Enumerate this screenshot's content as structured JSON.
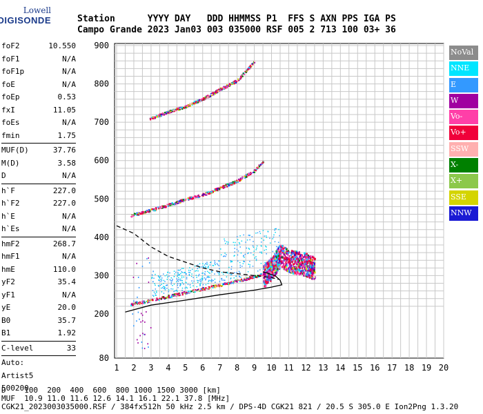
{
  "logo": {
    "line1": "Lowell",
    "line2": "DIGISONDE"
  },
  "header": {
    "line1": "Station      YYYY DAY   DDD HHMMSS P1  FFS S AXN PPS IGA PS",
    "line2": "Campo Grande 2023 Jan03 003 035000 RSF 005 2 713 100 03+ 36"
  },
  "params": [
    {
      "name": "foF2",
      "value": "10.550"
    },
    {
      "name": "foF1",
      "value": "N/A"
    },
    {
      "name": "foF1p",
      "value": "N/A"
    },
    {
      "name": "foE",
      "value": "N/A"
    },
    {
      "name": "foEp",
      "value": "0.53"
    },
    {
      "name": "fxI",
      "value": "11.05"
    },
    {
      "name": "foEs",
      "value": "N/A"
    },
    {
      "name": "fmin",
      "value": "1.75"
    },
    {
      "sep": true
    },
    {
      "name": "MUF(D)",
      "value": "37.76"
    },
    {
      "name": "M(D)",
      "value": "3.58"
    },
    {
      "name": "D",
      "value": "N/A"
    },
    {
      "sep": true
    },
    {
      "name": "h`F",
      "value": "227.0"
    },
    {
      "name": "h`F2",
      "value": "227.0"
    },
    {
      "name": "h`E",
      "value": "N/A"
    },
    {
      "name": "h`Es",
      "value": "N/A"
    },
    {
      "sep": true
    },
    {
      "name": "hmF2",
      "value": "268.7"
    },
    {
      "name": "hmF1",
      "value": "N/A"
    },
    {
      "name": "hmE",
      "value": "110.0"
    },
    {
      "name": "yF2",
      "value": "35.4"
    },
    {
      "name": "yF1",
      "value": "N/A"
    },
    {
      "name": "yE",
      "value": "20.0"
    },
    {
      "name": "B0",
      "value": "35.7"
    },
    {
      "name": "B1",
      "value": "1.92"
    },
    {
      "sep": true
    },
    {
      "name": "C-level",
      "value": "33"
    },
    {
      "sep": true
    },
    {
      "name": "Auto:",
      "value": ""
    },
    {
      "name": "Artist5",
      "value": ""
    },
    {
      "name": "500200",
      "value": ""
    }
  ],
  "legend": [
    {
      "label": "NoVal",
      "color": "#8c8c8c"
    },
    {
      "label": "NNE",
      "color": "#00e5ff"
    },
    {
      "label": "E",
      "color": "#3399ff"
    },
    {
      "label": "W",
      "color": "#a000a0"
    },
    {
      "label": "Vo-",
      "color": "#ff3fa8"
    },
    {
      "label": "Vo+",
      "color": "#f0003a"
    },
    {
      "label": "SSW",
      "color": "#ffb0b0"
    },
    {
      "label": "X-",
      "color": "#008000"
    },
    {
      "label": "X+",
      "color": "#8cc84b"
    },
    {
      "label": "SSE",
      "color": "#d4d400"
    },
    {
      "label": "NNW",
      "color": "#1a1ad4"
    }
  ],
  "chart_data": {
    "type": "scatter",
    "x_ticks": [
      "1",
      "2",
      "3",
      "4",
      "5",
      "6",
      "7",
      "8",
      "9",
      "10",
      "11",
      "12",
      "13",
      "14",
      "15",
      "16",
      "17",
      "18",
      "19",
      "20"
    ],
    "y_ticks": [
      "80",
      "200",
      "300",
      "400",
      "500",
      "600",
      "700",
      "800",
      "900"
    ],
    "xlim": [
      1,
      20
    ],
    "ylim": [
      80,
      900
    ],
    "grid": true,
    "traces": [
      {
        "name": "O-trace F2",
        "x": [
          1.8,
          2.5,
          3.5,
          4.5,
          5.5,
          6.5,
          7.5,
          8.5,
          9.5,
          10.0,
          10.5
        ],
        "y": [
          227,
          232,
          242,
          252,
          262,
          272,
          282,
          293,
          305,
          315,
          330
        ]
      },
      {
        "name": "2F echo",
        "x": [
          1.8,
          3.0,
          4.0,
          5.0,
          6.0,
          7.0,
          8.0,
          9.0,
          9.5
        ],
        "y": [
          458,
          472,
          485,
          500,
          512,
          530,
          548,
          575,
          600
        ]
      },
      {
        "name": "3F echo",
        "x": [
          2.9,
          4.0,
          5.0,
          6.0,
          7.0,
          8.0,
          8.5,
          9.0
        ],
        "y": [
          710,
          728,
          742,
          762,
          787,
          810,
          835,
          860
        ]
      },
      {
        "name": "Spread F",
        "x": [
          9.5,
          10.0,
          10.5,
          11.0,
          11.5,
          12.0,
          12.5
        ],
        "y": [
          300,
          320,
          355,
          340,
          335,
          330,
          320
        ]
      }
    ],
    "profile_curves": [
      {
        "name": "profile-solid",
        "x": [
          1.5,
          3.0,
          5.0,
          7.0,
          9.0,
          10.0,
          10.6,
          10.5,
          10.2,
          9.5
        ],
        "y": [
          205,
          223,
          236,
          250,
          262,
          270,
          276,
          288,
          300,
          310
        ]
      },
      {
        "name": "profile-dashed",
        "x": [
          1.0,
          2.0,
          3.0,
          4.0,
          5.0,
          6.0,
          7.0,
          8.0,
          9.0,
          10.0,
          10.4
        ],
        "y": [
          430,
          410,
          375,
          350,
          335,
          320,
          310,
          305,
          300,
          295,
          290
        ]
      }
    ]
  },
  "footer": {
    "line1": "D    100  200  400  600  800 1000 1500 3000 [km]",
    "line2": "MUF  10.9 11.0 11.6 12.6 14.1 16.1 22.1 37.8 [MHz]",
    "line3": "CGK21_2023003035000.RSF / 384fx512h 50 kHz 2.5 km / DPS-4D CGK21 821 / 20.5 S 305.0 E Ion2Png 1.3.20"
  }
}
